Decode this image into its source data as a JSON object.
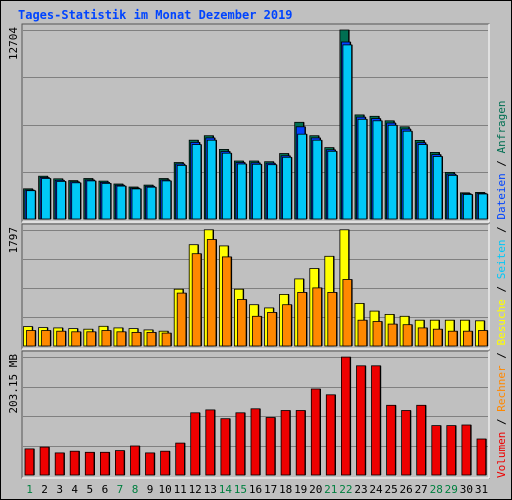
{
  "title": "Tages-Statistik im Monat Dezember 2019",
  "colors": {
    "background": "#c0c0c0",
    "title": "#0044ff",
    "anfragen": "#006f52",
    "dateien": "#0044ff",
    "seiten": "#00c8f8",
    "besuche": "#ffff00",
    "rechner": "#ff8800",
    "volumen": "#ee0000"
  },
  "chart_data": {
    "type": "bar",
    "x": [
      "1",
      "2",
      "3",
      "4",
      "5",
      "6",
      "7",
      "8",
      "9",
      "10",
      "11",
      "12",
      "13",
      "14",
      "15",
      "16",
      "17",
      "18",
      "19",
      "20",
      "21",
      "22",
      "23",
      "24",
      "25",
      "26",
      "27",
      "28",
      "29",
      "30",
      "31"
    ],
    "weekend_days": [
      "1",
      "7",
      "8",
      "14",
      "15",
      "21",
      "22",
      "28",
      "29"
    ],
    "panels": [
      {
        "id": "top",
        "ylabel": "12704",
        "ymax": 12704,
        "series": [
          {
            "name": "Anfragen",
            "color": "#006f52",
            "values": [
              2030,
              2880,
              2700,
              2580,
              2720,
              2550,
              2350,
              2150,
              2280,
              2720,
              3800,
              5300,
              5600,
              4680,
              3900,
              3900,
              3850,
              4400,
              6500,
              5600,
              4800,
              12704,
              7000,
              6900,
              6600,
              6200,
              5280,
              4480,
              3130,
              1760,
              1790
            ]
          },
          {
            "name": "Dateien",
            "color": "#0044ff",
            "values": [
              1950,
              2790,
              2600,
              2500,
              2630,
              2460,
              2270,
              2080,
              2200,
              2630,
              3700,
              5150,
              5450,
              4540,
              3800,
              3780,
              3750,
              4250,
              6200,
              5450,
              4650,
              11900,
              6850,
              6750,
              6450,
              6050,
              5130,
              4330,
              3020,
              1700,
              1730
            ]
          },
          {
            "name": "Seiten",
            "color": "#00c8f8",
            "values": [
              1900,
              2720,
              2530,
              2430,
              2560,
              2390,
              2210,
              2020,
              2140,
              2560,
              3600,
              5000,
              5300,
              4420,
              3700,
              3680,
              3650,
              4150,
              5700,
              5300,
              4550,
              11700,
              6700,
              6600,
              6300,
              5900,
              5000,
              4200,
              2930,
              1650,
              1680
            ]
          }
        ]
      },
      {
        "id": "middle",
        "ylabel": "1797",
        "ymax": 1797,
        "series": [
          {
            "name": "Besuche",
            "color": "#ffff00",
            "values": [
              300,
              285,
              280,
              270,
              260,
              305,
              280,
              270,
              250,
              230,
              880,
              1570,
              1800,
              1550,
              880,
              640,
              590,
              800,
              1040,
              1200,
              1390,
              1800,
              660,
              540,
              490,
              460,
              400,
              400,
              400,
              400,
              390
            ]
          },
          {
            "name": "Rechner",
            "color": "#ff8800",
            "values": [
              240,
              240,
              230,
              220,
              220,
              240,
              220,
              210,
              210,
              200,
              820,
              1430,
              1650,
              1380,
              720,
              460,
              520,
              640,
              830,
              900,
              830,
              1030,
              400,
              380,
              340,
              330,
              280,
              260,
              230,
              230,
              240
            ]
          }
        ]
      },
      {
        "id": "bottom",
        "ylabel": "203.15 MB",
        "ymax": 203.15,
        "series": [
          {
            "name": "Volumen",
            "color": "#ee0000",
            "values": [
              45,
              48,
              38,
              41,
              39,
              39,
              42,
              50,
              38,
              41,
              55,
              107,
              112,
              97,
              107,
              114,
              99,
              111,
              111,
              148,
              138,
              203,
              188,
              188,
              120,
              111,
              120,
              85,
              85,
              86,
              62
            ]
          }
        ]
      }
    ],
    "legend_right": [
      "Volumen",
      "/",
      "Rechner",
      "/",
      "Besuche",
      "/",
      "Seiten",
      "/",
      "Dateien",
      "/",
      "Anfragen"
    ],
    "grid": true
  }
}
